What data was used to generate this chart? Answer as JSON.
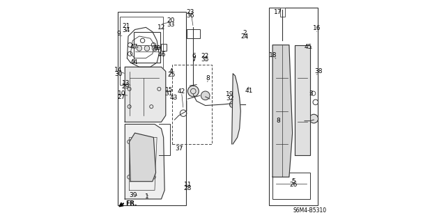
{
  "bg_color": "#ffffff",
  "border_color": "#cccccc",
  "line_color": "#333333",
  "part_label_color": "#000000",
  "diagram_code": "S6M4-B5310",
  "label_fontsize": 6.5,
  "figsize": [
    6.4,
    3.19
  ],
  "dpi": 100
}
